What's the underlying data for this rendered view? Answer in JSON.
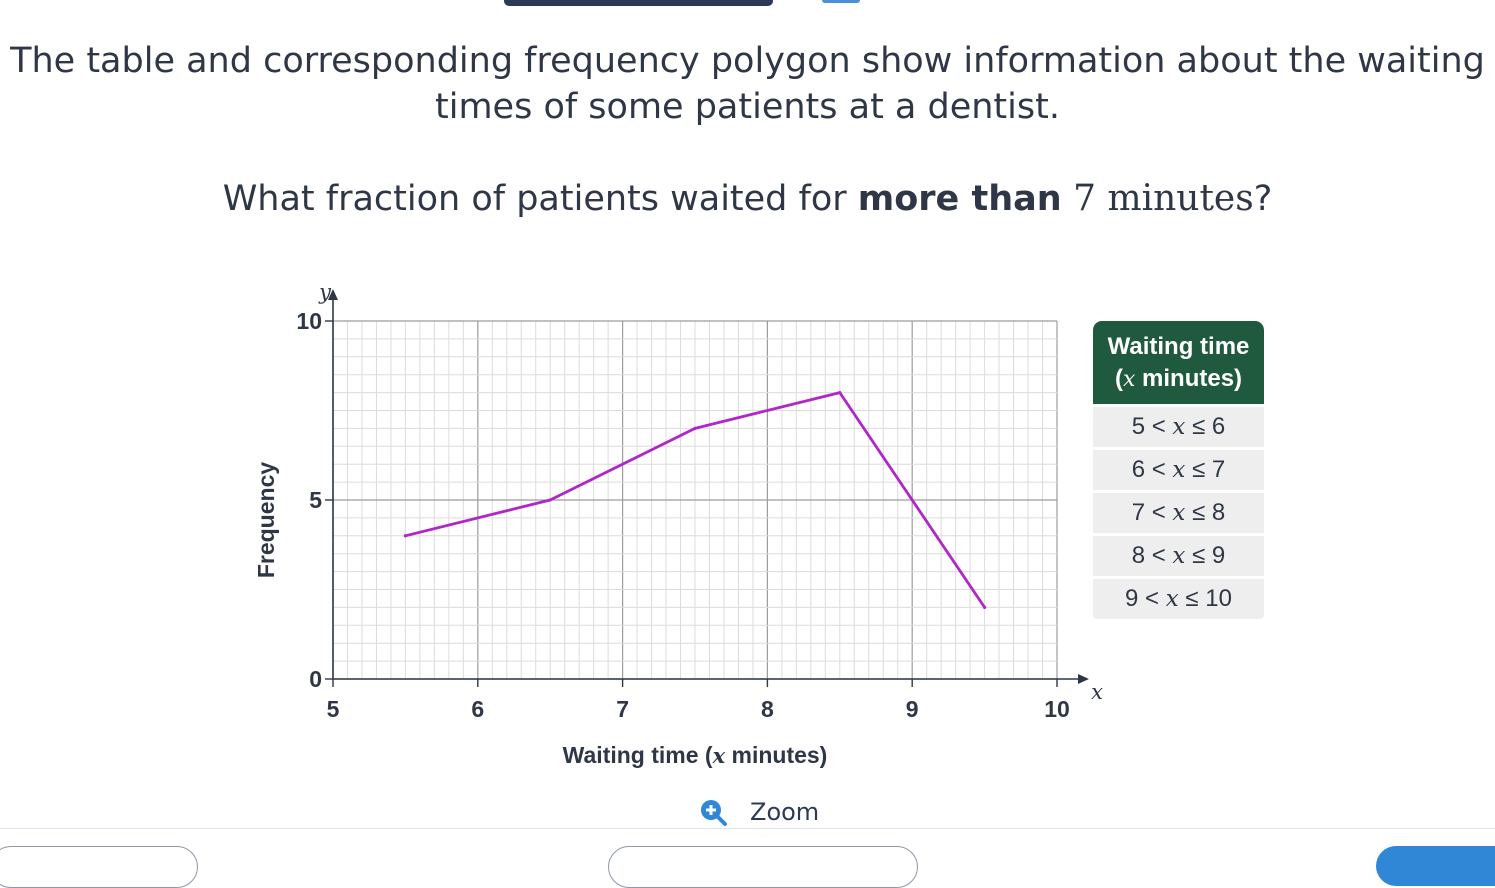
{
  "question": {
    "intro": "The table and corresponding frequency polygon show information about the waiting times of some patients at a dentist.",
    "ask_prefix": "What fraction of patients waited for ",
    "ask_bold": "more than",
    "ask_math": " 7 minutes",
    "ask_suffix": "?"
  },
  "table": {
    "header_line1": "Waiting time",
    "header_open": "(",
    "header_var": "x",
    "header_rest": " minutes)",
    "rows": [
      {
        "lo": "5",
        "hi": "6"
      },
      {
        "lo": "6",
        "hi": "7"
      },
      {
        "lo": "7",
        "hi": "8"
      },
      {
        "lo": "8",
        "hi": "9"
      },
      {
        "lo": "9",
        "hi": "10"
      }
    ],
    "lt": " < ",
    "le": " ≤ ",
    "var": "x"
  },
  "chart_data": {
    "type": "line",
    "x": [
      5.5,
      6.5,
      7.5,
      8.5,
      9.5
    ],
    "y": [
      4,
      5,
      7,
      8,
      2
    ],
    "xlim": [
      5,
      10
    ],
    "ylim": [
      0,
      10
    ],
    "x_ticks": [
      "5",
      "6",
      "7",
      "8",
      "9",
      "10"
    ],
    "y_ticks": [
      "0",
      "5",
      "10"
    ],
    "x_axis_var": "x",
    "y_axis_var": "y",
    "xlabel_prefix": "Waiting time (",
    "xlabel_var": "x",
    "xlabel_suffix": " minutes)",
    "ylabel": "Frequency",
    "grid": true,
    "line_color": "#b026c9"
  },
  "zoom": {
    "label": "Zoom",
    "icon": "zoom-in-icon"
  },
  "colors": {
    "accent": "#1f5a3f",
    "text": "#2f3747",
    "button": "#2f87d6"
  }
}
